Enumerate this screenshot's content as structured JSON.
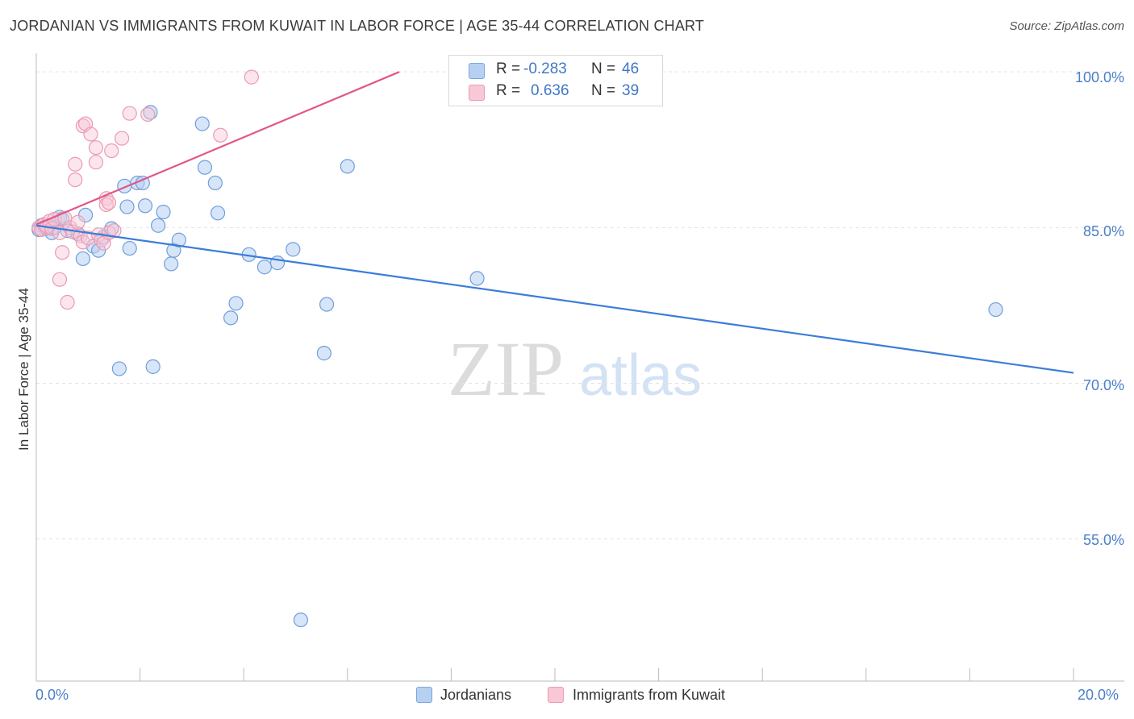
{
  "chart_data": {
    "type": "scatter",
    "title": "JORDANIAN VS IMMIGRANTS FROM KUWAIT IN LABOR FORCE | AGE 35-44 CORRELATION CHART",
    "source": "Source: ZipAtlas.com",
    "xlabel": "",
    "ylabel": "In Labor Force | Age 35-44",
    "xlim": [
      0,
      20
    ],
    "ylim": [
      41.3,
      101.8
    ],
    "x_tick_labels": [
      "0.0%",
      "20.0%"
    ],
    "y_ticks": [
      100,
      85,
      70,
      55
    ],
    "y_tick_labels": [
      "100.0%",
      "85.0%",
      "70.0%",
      "55.0%"
    ],
    "watermark": {
      "part1": "ZIP",
      "part2": "atlas"
    },
    "colors": {
      "blue": "#3b7dd8",
      "pink": "#e0578a",
      "blue_fill": "#b6d0f2",
      "pink_fill": "#f8c8d6"
    },
    "legend_stats": [
      {
        "r_label": "R =",
        "r_value": "-0.283",
        "n_label": "N =",
        "n_value": "46"
      },
      {
        "r_label": "R =",
        "r_value": "0.636",
        "n_label": "N =",
        "n_value": "39"
      }
    ],
    "series": [
      {
        "name": "Jordanians",
        "color": "#3b7dd8",
        "trend": {
          "x": [
            0,
            20
          ],
          "y": [
            85.2,
            71.0
          ]
        },
        "points": [
          [
            0.05,
            84.8
          ],
          [
            0.1,
            85.2
          ],
          [
            0.2,
            84.9
          ],
          [
            0.25,
            85.1
          ],
          [
            0.3,
            84.5
          ],
          [
            0.35,
            85.0
          ],
          [
            0.45,
            86.0
          ],
          [
            0.5,
            85.8
          ],
          [
            0.6,
            84.7
          ],
          [
            0.8,
            84.4
          ],
          [
            0.9,
            82.0
          ],
          [
            0.95,
            86.2
          ],
          [
            1.1,
            83.2
          ],
          [
            1.2,
            82.8
          ],
          [
            1.3,
            84.1
          ],
          [
            1.45,
            84.9
          ],
          [
            1.6,
            71.4
          ],
          [
            1.7,
            89.0
          ],
          [
            1.75,
            87.0
          ],
          [
            1.8,
            83.0
          ],
          [
            1.95,
            89.3
          ],
          [
            2.05,
            89.3
          ],
          [
            2.1,
            87.1
          ],
          [
            2.2,
            96.1
          ],
          [
            2.25,
            71.6
          ],
          [
            2.35,
            85.2
          ],
          [
            2.45,
            86.5
          ],
          [
            2.6,
            81.5
          ],
          [
            2.65,
            82.8
          ],
          [
            2.75,
            83.8
          ],
          [
            3.2,
            95.0
          ],
          [
            3.25,
            90.8
          ],
          [
            3.45,
            89.3
          ],
          [
            3.5,
            86.4
          ],
          [
            3.75,
            76.3
          ],
          [
            3.85,
            77.7
          ],
          [
            4.1,
            82.4
          ],
          [
            4.4,
            81.2
          ],
          [
            4.65,
            81.6
          ],
          [
            4.95,
            82.9
          ],
          [
            5.1,
            47.2
          ],
          [
            5.55,
            72.9
          ],
          [
            5.6,
            77.6
          ],
          [
            6.0,
            90.9
          ],
          [
            8.5,
            80.1
          ],
          [
            18.5,
            77.1
          ]
        ]
      },
      {
        "name": "Immigrants from Kuwait",
        "color": "#e0578a",
        "trend": {
          "x": [
            0,
            7.0
          ],
          "y": [
            85.3,
            100.0
          ]
        },
        "points": [
          [
            0.05,
            85.0
          ],
          [
            0.1,
            84.8
          ],
          [
            0.15,
            85.3
          ],
          [
            0.2,
            85.1
          ],
          [
            0.25,
            85.6
          ],
          [
            0.3,
            84.9
          ],
          [
            0.35,
            85.8
          ],
          [
            0.45,
            80.0
          ],
          [
            0.45,
            84.5
          ],
          [
            0.5,
            82.6
          ],
          [
            0.55,
            85.9
          ],
          [
            0.6,
            77.8
          ],
          [
            0.65,
            85.0
          ],
          [
            0.7,
            84.6
          ],
          [
            0.75,
            91.1
          ],
          [
            0.75,
            89.6
          ],
          [
            0.8,
            85.5
          ],
          [
            0.85,
            84.2
          ],
          [
            0.9,
            83.6
          ],
          [
            0.9,
            94.8
          ],
          [
            0.95,
            95.0
          ],
          [
            1.0,
            84.0
          ],
          [
            1.05,
            94.0
          ],
          [
            1.15,
            92.7
          ],
          [
            1.15,
            91.3
          ],
          [
            1.2,
            84.3
          ],
          [
            1.25,
            83.8
          ],
          [
            1.3,
            83.5
          ],
          [
            1.35,
            87.8
          ],
          [
            1.35,
            87.2
          ],
          [
            1.4,
            87.4
          ],
          [
            1.4,
            84.5
          ],
          [
            1.45,
            92.4
          ],
          [
            1.5,
            84.7
          ],
          [
            1.65,
            93.6
          ],
          [
            1.8,
            96.0
          ],
          [
            2.15,
            95.9
          ],
          [
            3.55,
            93.9
          ],
          [
            4.15,
            99.5
          ]
        ]
      }
    ]
  },
  "bottom_legend": [
    "Jordanians",
    "Immigrants from Kuwait"
  ]
}
